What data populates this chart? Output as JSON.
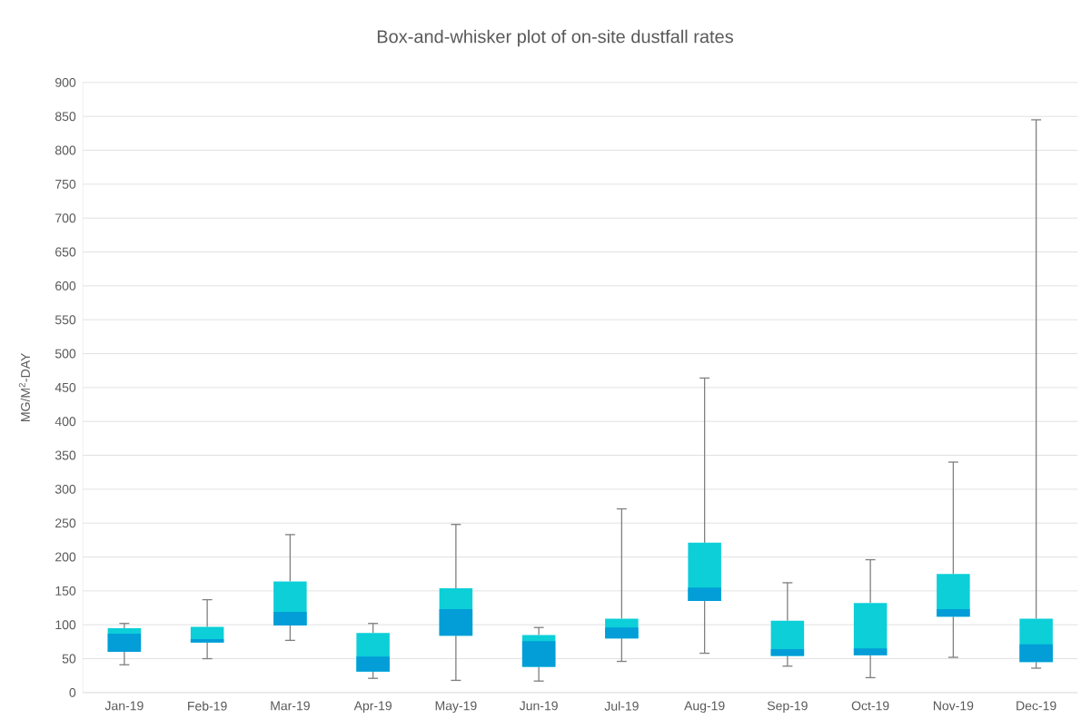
{
  "chart_data": {
    "type": "box",
    "title": "Box-and-whisker plot of on-site dustfall rates",
    "ylabel": "MG/M$^{2}$-DAY",
    "categories": [
      "Jan-19",
      "Feb-19",
      "Mar-19",
      "Apr-19",
      "May-19",
      "Jun-19",
      "Jul-19",
      "Aug-19",
      "Sep-19",
      "Oct-19",
      "Nov-19",
      "Dec-19"
    ],
    "color": "#0ccfd8",
    "boxes": [
      {
        "low": 41,
        "q1": 60,
        "median": 87,
        "q3": 95,
        "high": 102
      },
      {
        "low": 50,
        "q1": 74,
        "median": 79,
        "q3": 97,
        "high": 137
      },
      {
        "low": 77,
        "q1": 99,
        "median": 119,
        "q3": 164,
        "high": 233
      },
      {
        "low": 21,
        "q1": 31,
        "median": 53,
        "q3": 88,
        "high": 102
      },
      {
        "low": 18,
        "q1": 84,
        "median": 123,
        "q3": 154,
        "high": 248
      },
      {
        "low": 17,
        "q1": 38,
        "median": 76,
        "q3": 85,
        "high": 96
      },
      {
        "low": 46,
        "q1": 80,
        "median": 96,
        "q3": 109,
        "high": 271
      },
      {
        "low": 58,
        "q1": 135,
        "median": 155,
        "q3": 221,
        "high": 464
      },
      {
        "low": 39,
        "q1": 54,
        "median": 64,
        "q3": 106,
        "high": 162
      },
      {
        "low": 22,
        "q1": 55,
        "median": 65,
        "q3": 132,
        "high": 196
      },
      {
        "low": 52,
        "q1": 112,
        "median": 123,
        "q3": 175,
        "high": 340
      },
      {
        "low": 36,
        "q1": 45,
        "median": 71,
        "q3": 109,
        "high": 845
      }
    ],
    "ylim": [
      0,
      900
    ],
    "yticks": [
      0,
      50,
      100,
      150,
      200,
      250,
      300,
      350,
      400,
      450,
      500,
      550,
      600,
      650,
      700,
      750,
      800,
      850,
      900
    ],
    "grid": "y"
  }
}
